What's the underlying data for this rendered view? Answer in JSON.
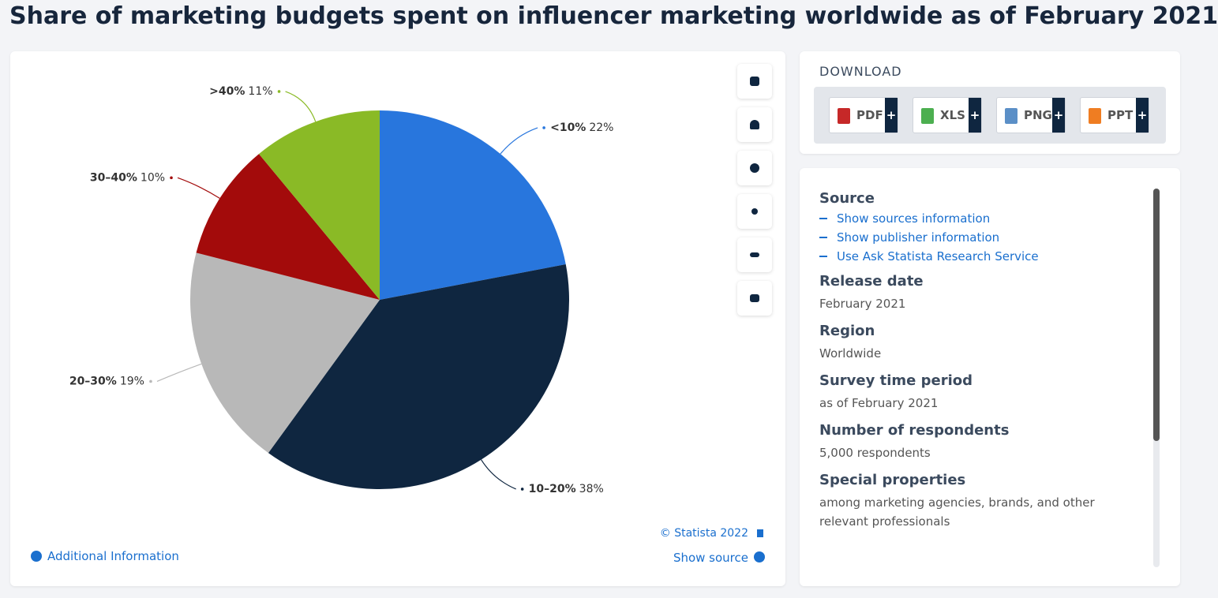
{
  "chart_data": {
    "type": "pie",
    "title": "Share of marketing budgets spent on influencer marketing worldwide as of February 2021",
    "categories": [
      "<10%",
      "10–20%",
      "20–30%",
      "30–40%",
      ">40%"
    ],
    "values": [
      22,
      38,
      19,
      10,
      11
    ],
    "value_labels": [
      "22%",
      "38%",
      "19%",
      "10%",
      "11%"
    ],
    "colors": [
      "#2876dd",
      "#0f2640",
      "#b8b8b8",
      "#a30b0b",
      "#8aba26"
    ]
  },
  "footer": {
    "credit": "© Statista 2022",
    "show_source": "Show source",
    "additional_info": "Additional Information"
  },
  "download": {
    "title": "DOWNLOAD",
    "buttons": [
      "PDF",
      "XLS",
      "PNG",
      "PPT"
    ],
    "plus": "+"
  },
  "info": {
    "source_heading": "Source",
    "links": [
      "Show sources information",
      "Show publisher information",
      "Use Ask Statista Research Service"
    ],
    "sections": [
      {
        "heading": "Release date",
        "text": "February 2021"
      },
      {
        "heading": "Region",
        "text": "Worldwide"
      },
      {
        "heading": "Survey time period",
        "text": "as of February 2021"
      },
      {
        "heading": "Number of respondents",
        "text": "5,000 respondents"
      },
      {
        "heading": "Special properties",
        "text": "among marketing agencies, brands, and other relevant professionals"
      }
    ]
  }
}
